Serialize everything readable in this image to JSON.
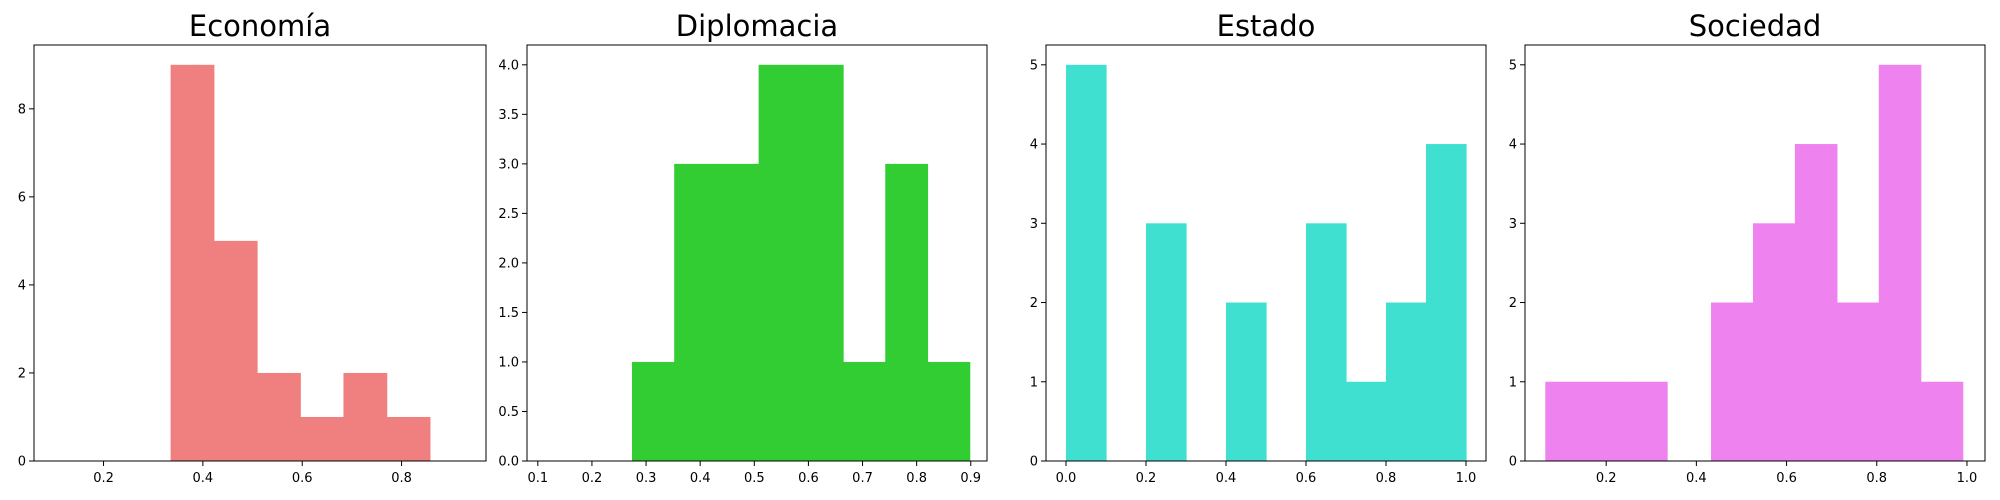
{
  "chart_data": [
    {
      "type": "bar",
      "title": "Economía",
      "color": "#F08080",
      "xlim": [
        0.06,
        0.97
      ],
      "ylim": [
        0,
        9.45
      ],
      "xticks": [
        0.2,
        0.4,
        0.6,
        0.8
      ],
      "xtick_labels": [
        "0.2",
        "0.4",
        "0.6",
        "0.8"
      ],
      "yticks": [
        0,
        2,
        4,
        6,
        8
      ],
      "ytick_labels": [
        "0",
        "2",
        "4",
        "6",
        "8"
      ],
      "bin_edges": [
        0.335,
        0.3785,
        0.422,
        0.4655,
        0.509,
        0.5525,
        0.596,
        0.6395,
        0.683,
        0.7265,
        0.77,
        0.8135,
        0.857
      ],
      "values": [
        9,
        9,
        5,
        5,
        2,
        2,
        1,
        1,
        2,
        2,
        1,
        1
      ]
    },
    {
      "type": "bar",
      "title": "Diplomacia",
      "color": "#32CD32",
      "xlim": [
        0.08,
        0.93
      ],
      "ylim": [
        0,
        4.2
      ],
      "xticks": [
        0.1,
        0.2,
        0.3,
        0.4,
        0.5,
        0.6,
        0.7,
        0.8,
        0.9
      ],
      "xtick_labels": [
        "0.1",
        "0.2",
        "0.3",
        "0.4",
        "0.5",
        "0.6",
        "0.7",
        "0.8",
        "0.9"
      ],
      "yticks": [
        0.0,
        0.5,
        1.0,
        1.5,
        2.0,
        2.5,
        3.0,
        3.5,
        4.0
      ],
      "ytick_labels": [
        "0.0",
        "0.5",
        "1.0",
        "1.5",
        "2.0",
        "2.5",
        "3.0",
        "3.5",
        "4.0"
      ],
      "bin_edges": [
        0.274,
        0.352,
        0.43,
        0.508,
        0.586,
        0.664,
        0.742,
        0.82,
        0.898
      ],
      "values": [
        1,
        3,
        3,
        4,
        4,
        1,
        3,
        1
      ]
    },
    {
      "type": "bar",
      "title": "Estado",
      "color": "#40E0D0",
      "xlim": [
        -0.05,
        1.05
      ],
      "ylim": [
        0,
        5.25
      ],
      "xticks": [
        0.0,
        0.2,
        0.4,
        0.6,
        0.8,
        1.0
      ],
      "xtick_labels": [
        "0.0",
        "0.2",
        "0.4",
        "0.6",
        "0.8",
        "1.0"
      ],
      "yticks": [
        0,
        1,
        2,
        3,
        4,
        5
      ],
      "ytick_labels": [
        "0",
        "1",
        "2",
        "3",
        "4",
        "5"
      ],
      "bin_edges": [
        0.0,
        0.1,
        0.2,
        0.3,
        0.4,
        0.5,
        0.6,
        0.7,
        0.8,
        0.9,
        1.0
      ],
      "values": [
        5,
        0,
        3,
        0,
        2,
        0,
        3,
        1,
        2,
        4
      ]
    },
    {
      "type": "bar",
      "title": "Sociedad",
      "color": "#EE82EE",
      "xlim": [
        0.02,
        1.04
      ],
      "ylim": [
        0,
        5.25
      ],
      "xticks": [
        0.2,
        0.4,
        0.6,
        0.8,
        1.0
      ],
      "xtick_labels": [
        "0.2",
        "0.4",
        "0.6",
        "0.8",
        "1.0"
      ],
      "yticks": [
        0,
        1,
        2,
        3,
        4,
        5
      ],
      "ytick_labels": [
        "0",
        "1",
        "2",
        "3",
        "4",
        "5"
      ],
      "bin_edges": [
        0.065,
        0.155,
        0.245,
        0.335,
        0.4325,
        0.5255,
        0.6185,
        0.7115,
        0.8045,
        0.8975,
        0.9905
      ],
      "values": [
        1,
        1,
        1,
        0,
        2,
        3,
        4,
        2,
        5,
        1
      ]
    }
  ]
}
